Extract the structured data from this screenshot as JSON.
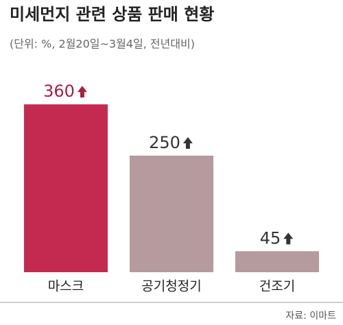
{
  "chart_data": {
    "type": "bar",
    "title": "미세먼지 관련 상품 판매 현황",
    "subtitle": "(단위: %, 2월20일~3월4일, 전년대비)",
    "categories": [
      "마스크",
      "공기청정기",
      "건조기"
    ],
    "values": [
      360,
      250,
      45
    ],
    "colors": [
      "#c42a50",
      "#b59a9e",
      "#b59a9e"
    ],
    "label_colors": [
      "#a82042",
      "#333333",
      "#333333"
    ],
    "source": "자료: 이마트"
  }
}
